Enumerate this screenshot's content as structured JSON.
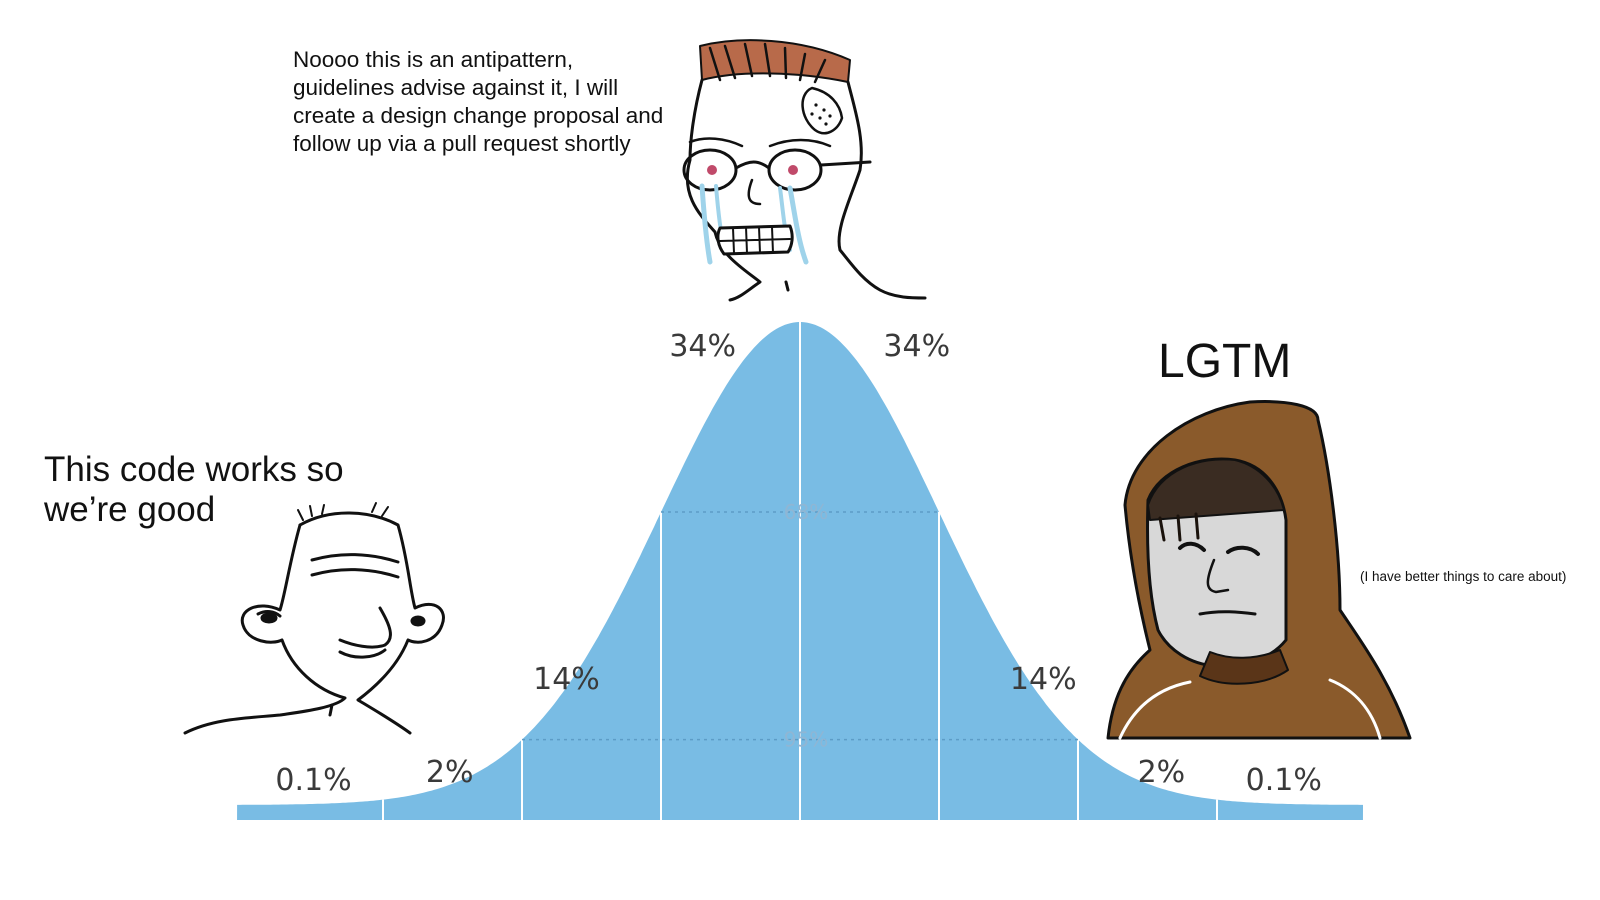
{
  "captions": {
    "middle": "Noooo this is an antipattern, guidelines advise against it, I will create a design change proposal and follow up via a pull request shortly",
    "left": "This code works so we’re good",
    "right": "LGTM",
    "right_aside": "(I have better things to care about)"
  },
  "chart_data": {
    "type": "area",
    "distribution": "normal",
    "x": [
      -4,
      -3,
      -2,
      -1,
      0,
      1,
      2,
      3,
      4
    ],
    "segment_percent_labels": [
      "0.1%",
      "2%",
      "14%",
      "34%",
      "34%",
      "14%",
      "2%",
      "0.1%"
    ],
    "interval_labels": [
      "68%",
      "95%"
    ],
    "color": "#79bce4"
  },
  "characters": [
    {
      "name": "wojak-simple",
      "hair_color": "#ffffff"
    },
    {
      "name": "crying-nerd-wojak",
      "hair_color": "#b86a4a"
    },
    {
      "name": "hooded-wojak",
      "hood_color": "#8a5a2b"
    }
  ]
}
